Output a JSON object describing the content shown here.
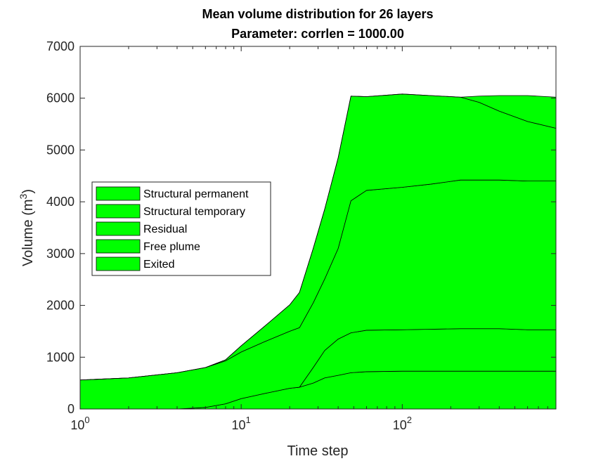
{
  "chart_data": {
    "type": "area",
    "title": [
      "Mean volume distribution for 26 layers",
      "Parameter: corrlen = 1000.00"
    ],
    "xlabel": "Time step",
    "ylabel": "Volume (m3)",
    "ylabel_base": "Volume (m",
    "ylabel_sup": "3",
    "ylabel_end": ")",
    "xscale": "log",
    "xlim": [
      1,
      900
    ],
    "ylim": [
      0,
      7000
    ],
    "xticks": [
      {
        "value": 1,
        "base": "10",
        "exp": "0"
      },
      {
        "value": 10,
        "base": "10",
        "exp": "1"
      },
      {
        "value": 100,
        "base": "10",
        "exp": "2"
      }
    ],
    "yticks": [
      0,
      1000,
      2000,
      3000,
      4000,
      5000,
      6000,
      7000
    ],
    "grid": false,
    "legend_position": "middle-left",
    "fill_color": "#00ff00",
    "series": [
      {
        "name": "Structural permanent",
        "x": [
          1,
          2,
          4,
          6,
          8,
          10,
          14,
          20,
          23,
          28,
          33,
          40,
          48,
          60,
          100,
          150,
          230,
          300,
          400,
          600,
          900
        ],
        "y": [
          0,
          0,
          0,
          30,
          100,
          200,
          300,
          400,
          420,
          500,
          600,
          650,
          700,
          720,
          730,
          730,
          730,
          730,
          730,
          730,
          730
        ]
      },
      {
        "name": "Structural temporary",
        "x": [
          1,
          2,
          4,
          6,
          8,
          10,
          14,
          20,
          23,
          28,
          33,
          40,
          48,
          60,
          100,
          150,
          230,
          300,
          400,
          600,
          900
        ],
        "y": [
          0,
          0,
          0,
          0,
          0,
          0,
          0,
          0,
          0,
          300,
          530,
          700,
          770,
          800,
          800,
          810,
          820,
          820,
          820,
          800,
          800
        ]
      },
      {
        "name": "Residual",
        "x": [
          1,
          2,
          4,
          6,
          8,
          10,
          14,
          20,
          23,
          28,
          33,
          40,
          48,
          60,
          100,
          150,
          230,
          300,
          400,
          600,
          900
        ],
        "y": [
          560,
          600,
          700,
          770,
          830,
          900,
          1000,
          1100,
          1150,
          1250,
          1380,
          1750,
          2550,
          2700,
          2750,
          2800,
          2870,
          2870,
          2870,
          2870,
          2870
        ]
      },
      {
        "name": "Free plume",
        "x": [
          1,
          2,
          4,
          6,
          8,
          10,
          14,
          20,
          23,
          28,
          33,
          40,
          48,
          60,
          100,
          150,
          230,
          300,
          400,
          600,
          900
        ],
        "y": [
          0,
          0,
          0,
          0,
          20,
          120,
          300,
          510,
          680,
          1050,
          1350,
          1750,
          2020,
          1810,
          1800,
          1710,
          1600,
          1500,
          1330,
          1150,
          1020
        ]
      },
      {
        "name": "Exited",
        "x": [
          1,
          2,
          4,
          6,
          8,
          10,
          14,
          20,
          23,
          28,
          33,
          40,
          48,
          60,
          100,
          150,
          230,
          300,
          400,
          600,
          900
        ],
        "y": [
          0,
          0,
          0,
          0,
          0,
          0,
          0,
          0,
          0,
          0,
          0,
          0,
          0,
          0,
          0,
          0,
          0,
          120,
          300,
          500,
          600
        ]
      }
    ]
  }
}
